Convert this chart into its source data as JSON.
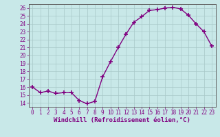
{
  "x": [
    0,
    1,
    2,
    3,
    4,
    5,
    6,
    7,
    8,
    9,
    10,
    11,
    12,
    13,
    14,
    15,
    16,
    17,
    18,
    19,
    20,
    21,
    22,
    23
  ],
  "y": [
    16,
    15.3,
    15.5,
    15.2,
    15.3,
    15.3,
    14.3,
    13.9,
    14.2,
    17.3,
    19.2,
    21.0,
    22.7,
    24.2,
    24.9,
    25.7,
    25.8,
    26.0,
    26.1,
    25.9,
    25.1,
    24.0,
    23.0,
    21.2
  ],
  "line_color": "#800080",
  "marker": "+",
  "markersize": 4,
  "markeredgewidth": 1.2,
  "linewidth": 1.0,
  "bg_color": "#c8e8e8",
  "grid_color": "#a8c8c8",
  "xlabel": "Windchill (Refroidissement éolien,°C)",
  "ylim_min": 13.5,
  "ylim_max": 26.5,
  "xlim_min": -0.5,
  "xlim_max": 23.5,
  "yticks": [
    14,
    15,
    16,
    17,
    18,
    19,
    20,
    21,
    22,
    23,
    24,
    25,
    26
  ],
  "xticks": [
    0,
    1,
    2,
    3,
    4,
    5,
    6,
    7,
    8,
    9,
    10,
    11,
    12,
    13,
    14,
    15,
    16,
    17,
    18,
    19,
    20,
    21,
    22,
    23
  ],
  "tick_fontsize": 5.5,
  "xlabel_fontsize": 6.5,
  "line_purple": "#800080",
  "spine_color": "#606060"
}
